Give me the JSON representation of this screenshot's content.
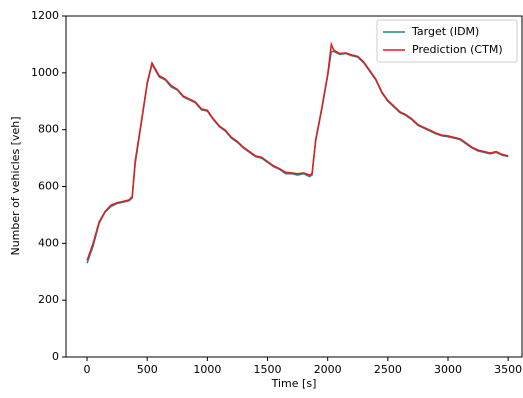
{
  "chart_data": {
    "type": "line",
    "x_label": "Time [s]",
    "y_label": "Number of vehicles [veh]",
    "x": [
      0,
      50,
      100,
      150,
      200,
      250,
      300,
      350,
      375,
      400,
      450,
      500,
      540,
      600,
      650,
      700,
      750,
      800,
      850,
      900,
      950,
      1000,
      1050,
      1100,
      1150,
      1200,
      1250,
      1300,
      1350,
      1400,
      1450,
      1500,
      1550,
      1600,
      1650,
      1700,
      1750,
      1800,
      1850,
      1870,
      1900,
      1950,
      2000,
      2030,
      2050,
      2100,
      2150,
      2200,
      2250,
      2300,
      2350,
      2400,
      2450,
      2500,
      2550,
      2600,
      2650,
      2700,
      2750,
      2800,
      2850,
      2900,
      2950,
      3000,
      3050,
      3100,
      3150,
      3200,
      3250,
      3300,
      3350,
      3400,
      3450,
      3500
    ],
    "series": [
      {
        "name": "Target (IDM)",
        "color": "#1a8a8a",
        "values": [
          330,
          390,
          470,
          510,
          530,
          540,
          545,
          550,
          560,
          680,
          820,
          960,
          1030,
          985,
          975,
          950,
          940,
          915,
          905,
          895,
          870,
          865,
          835,
          810,
          795,
          770,
          755,
          735,
          720,
          705,
          700,
          685,
          670,
          660,
          645,
          645,
          640,
          645,
          635,
          640,
          760,
          870,
          990,
          1075,
          1075,
          1065,
          1068,
          1060,
          1055,
          1035,
          1005,
          975,
          930,
          900,
          880,
          860,
          850,
          835,
          815,
          805,
          795,
          785,
          778,
          775,
          770,
          765,
          750,
          735,
          725,
          720,
          715,
          720,
          710,
          705
        ]
      },
      {
        "name": "Prediction (CTM)",
        "color": "#e8191c",
        "values": [
          340,
          400,
          475,
          512,
          535,
          543,
          548,
          553,
          565,
          690,
          825,
          965,
          1035,
          990,
          978,
          955,
          942,
          918,
          908,
          898,
          873,
          868,
          838,
          813,
          798,
          773,
          758,
          738,
          723,
          708,
          703,
          688,
          673,
          663,
          650,
          648,
          645,
          648,
          640,
          645,
          765,
          875,
          995,
          1100,
          1080,
          1068,
          1070,
          1063,
          1058,
          1038,
          1008,
          978,
          933,
          903,
          883,
          863,
          853,
          838,
          818,
          808,
          798,
          788,
          781,
          778,
          773,
          768,
          753,
          738,
          728,
          723,
          718,
          723,
          713,
          708
        ]
      }
    ],
    "xlim": [
      -175,
      3615
    ],
    "ylim": [
      0,
      1200
    ],
    "xticks": [
      0,
      500,
      1000,
      1500,
      2000,
      2500,
      3000,
      3500
    ],
    "yticks": [
      0,
      200,
      400,
      600,
      800,
      1000,
      1200
    ],
    "legend": "upper right"
  }
}
